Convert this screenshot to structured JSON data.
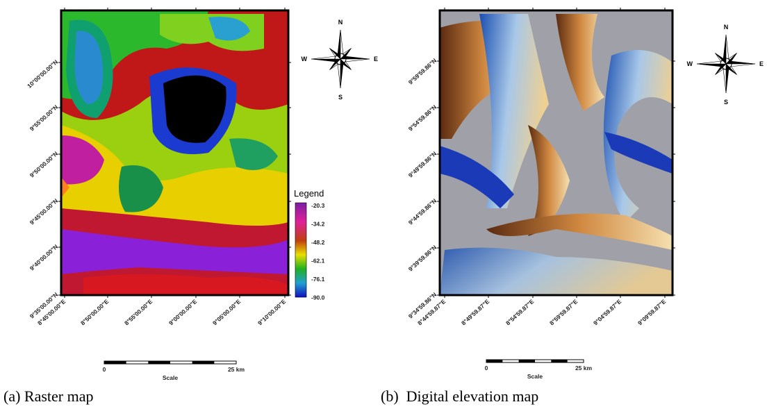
{
  "panels": [
    {
      "caption": "(a) Raster map",
      "lat_labels": [
        "10°00'00.00\"N",
        "9°55'00.00\"N",
        "9°50'00.00\"N",
        "9°45'00.00\"N",
        "9°40'00.00\"N",
        "9°35'00.00\"N"
      ],
      "lon_labels": [
        "8°45'00.00\"E",
        "8°50'00.00\"E",
        "8°55'00.00\"E",
        "9°00'00.00\"E",
        "9°05'00.00\"E",
        "9°10'00.00\"E"
      ],
      "legend": {
        "title": "Legend",
        "labels": [
          "-20.3",
          "-34.2",
          "-48.2",
          "-62.1",
          "-76.1",
          "-90.0"
        ]
      },
      "compass": {
        "n": "N",
        "w": "W",
        "e": "E",
        "s": "S"
      },
      "scale": {
        "start": "0",
        "end": "25 km",
        "title": "Scale"
      }
    },
    {
      "caption": "(b)  Digital elevation map",
      "lat_labels": [
        "9°59'59.86\"N",
        "9°54'59.86\"N",
        "9°49'59.86\"N",
        "9°44'59.86\"N",
        "9°39'59.86\"N",
        "9°34'59.86\"N"
      ],
      "lon_labels": [
        "8°44'59.87\"E",
        "8°49'59.87\"E",
        "8°54'59.87\"E",
        "8°59'59.87\"E",
        "9°04'59.87\"E",
        "9°09'59.87\"E"
      ],
      "compass": {
        "n": "N",
        "w": "W",
        "e": "E",
        "s": "S"
      },
      "scale": {
        "start": "0",
        "end": "25 km",
        "title": "Scale"
      }
    }
  ]
}
